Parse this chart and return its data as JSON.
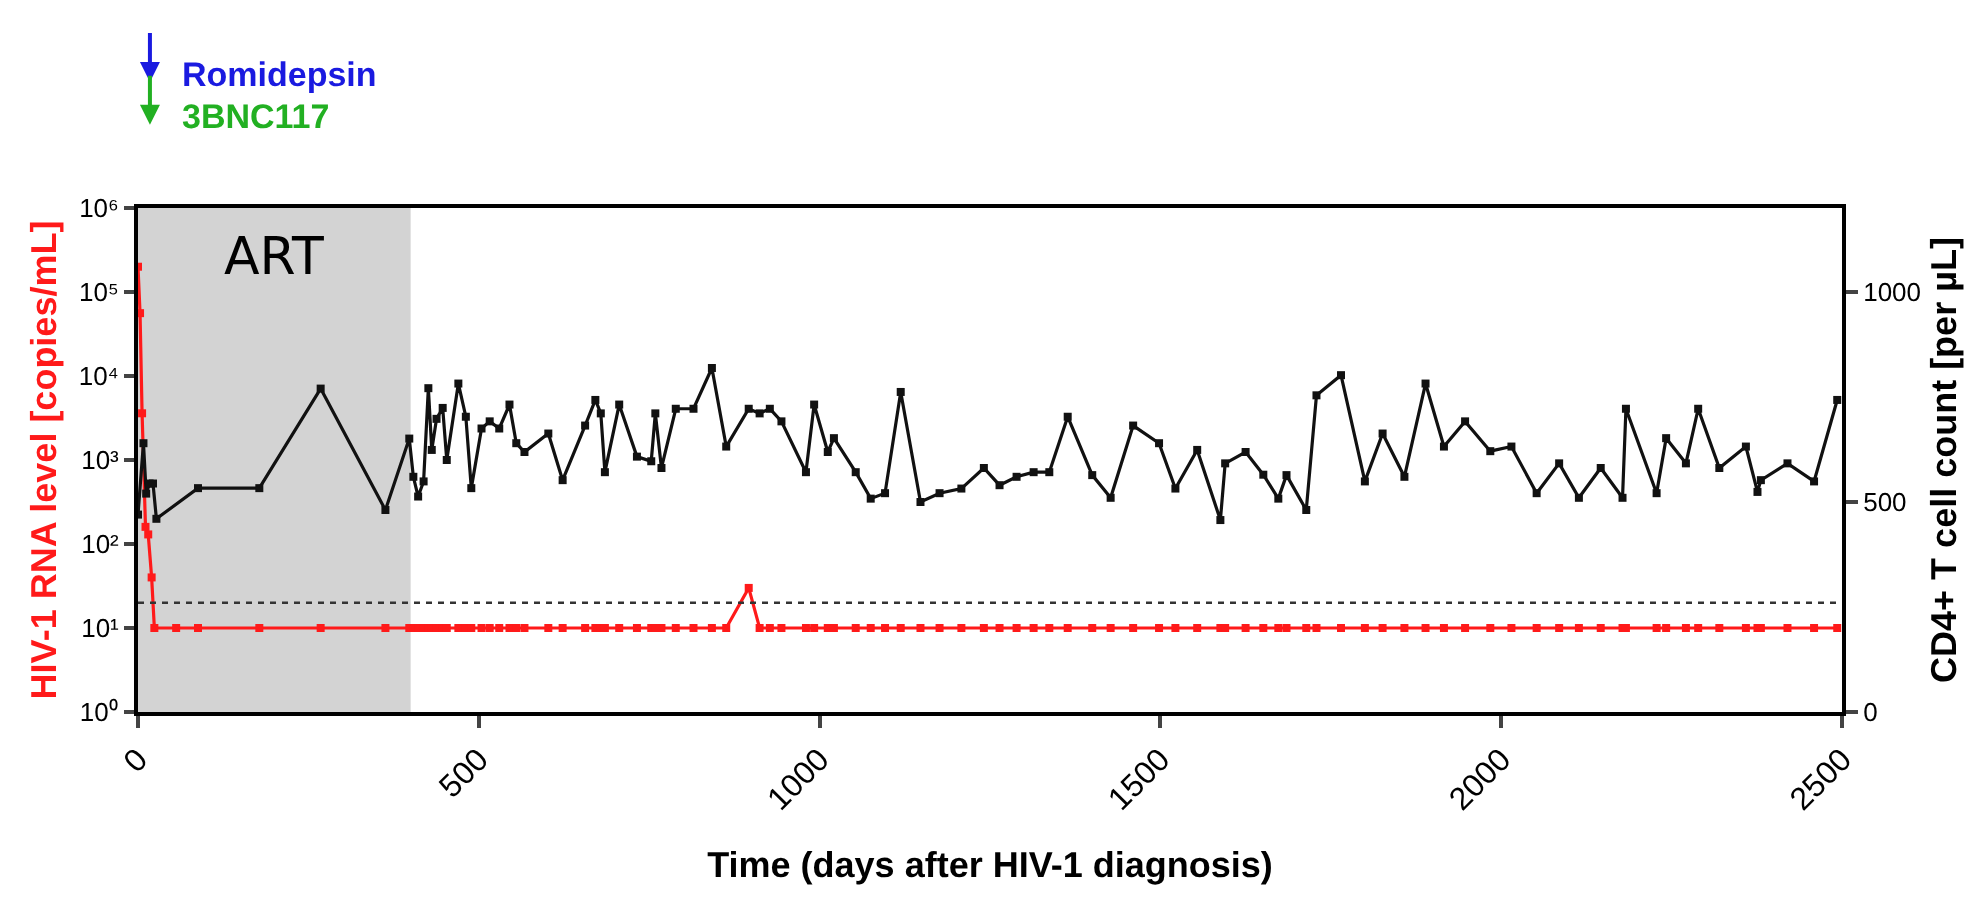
{
  "chart_data": {
    "type": "line",
    "xlabel": "Time (days after HIV-1 diagnosis)",
    "ylabel": "HIV-1 RNA level [copies/mL]",
    "y2label": "CD4+ T cell count [per µL]",
    "xlim": [
      0,
      2500
    ],
    "xticks": [
      0,
      500,
      1000,
      1500,
      2000,
      2500
    ],
    "ylim": [
      1,
      1000000
    ],
    "yticks": [
      {
        "value": 1,
        "label": "10⁰"
      },
      {
        "value": 10,
        "label": "10¹"
      },
      {
        "value": 100,
        "label": "10²"
      },
      {
        "value": 1000,
        "label": "10³"
      },
      {
        "value": 10000,
        "label": "10⁴"
      },
      {
        "value": 100000,
        "label": "10⁵"
      },
      {
        "value": 1000000,
        "label": "10⁶"
      }
    ],
    "y2lim": [
      0,
      1200
    ],
    "y2ticks": [
      0,
      500,
      1000
    ],
    "log": "y",
    "grid": false,
    "marker": "square",
    "line_style": "solid",
    "series": [
      {
        "color": "#ff1a1a",
        "axis": "y",
        "x": [
          0,
          3,
          6,
          11,
          15,
          20,
          24,
          56,
          88,
          178,
          268,
          363,
          398,
          404,
          411,
          419,
          426,
          431,
          438,
          447,
          453,
          470,
          481,
          489,
          504,
          516,
          530,
          545,
          555,
          567,
          602,
          623,
          656,
          671,
          679,
          685,
          706,
          732,
          753,
          759,
          768,
          789,
          815,
          842,
          863,
          896,
          912,
          927,
          944,
          980,
          992,
          1012,
          1021,
          1053,
          1075,
          1096,
          1119,
          1148,
          1176,
          1208,
          1241,
          1264,
          1289,
          1314,
          1337,
          1364,
          1400,
          1427,
          1460,
          1498,
          1522,
          1554,
          1588,
          1595,
          1625,
          1651,
          1673,
          1685,
          1714,
          1729,
          1765,
          1800,
          1826,
          1858,
          1889,
          1916,
          1947,
          1984,
          2015,
          2052,
          2085,
          2114,
          2146,
          2178,
          2183,
          2228,
          2242,
          2271,
          2289,
          2320,
          2359,
          2376,
          2381,
          2420,
          2459,
          2493
        ],
        "values": [
          200000,
          56000,
          3600,
          160,
          130,
          40,
          10,
          10,
          10,
          10,
          10,
          10,
          10,
          10,
          10,
          10,
          10,
          10,
          10,
          10,
          10,
          10,
          10,
          10,
          10,
          10,
          10,
          10,
          10,
          10,
          10,
          10,
          10,
          10,
          10,
          10,
          10,
          10,
          10,
          10,
          10,
          10,
          10,
          10,
          10,
          30,
          10,
          10,
          10,
          10,
          10,
          10,
          10,
          10,
          10,
          10,
          10,
          10,
          10,
          10,
          10,
          10,
          10,
          10,
          10,
          10,
          10,
          10,
          10,
          10,
          10,
          10,
          10,
          10,
          10,
          10,
          10,
          10,
          10,
          10,
          10,
          10,
          10,
          10,
          10,
          10,
          10,
          10,
          10,
          10,
          10,
          10,
          10,
          10,
          10,
          10,
          10,
          10,
          10,
          10,
          10,
          10,
          10,
          10,
          10,
          10
        ]
      },
      {
        "color": "#111111",
        "axis": "y2",
        "x": [
          0,
          8,
          12,
          17,
          22,
          27,
          88,
          178,
          268,
          363,
          398,
          404,
          411,
          419,
          426,
          431,
          438,
          447,
          453,
          470,
          481,
          489,
          504,
          516,
          530,
          545,
          555,
          567,
          602,
          623,
          656,
          671,
          679,
          685,
          706,
          732,
          753,
          759,
          768,
          789,
          815,
          842,
          863,
          896,
          912,
          927,
          944,
          980,
          992,
          1012,
          1021,
          1053,
          1075,
          1096,
          1119,
          1148,
          1176,
          1208,
          1241,
          1264,
          1289,
          1314,
          1337,
          1364,
          1400,
          1427,
          1460,
          1498,
          1522,
          1554,
          1588,
          1595,
          1625,
          1651,
          1673,
          1685,
          1714,
          1729,
          1765,
          1800,
          1826,
          1858,
          1889,
          1916,
          1947,
          1984,
          2015,
          2052,
          2085,
          2114,
          2146,
          2178,
          2183,
          2228,
          2242,
          2271,
          2289,
          2320,
          2359,
          2376,
          2381,
          2420,
          2459,
          2493
        ],
        "values": [
          470,
          640,
          520,
          544,
          544,
          460,
          533,
          533,
          770,
          481,
          651,
          560,
          513,
          549,
          771,
          624,
          698,
          724,
          600,
          782,
          703,
          533,
          675,
          692,
          675,
          732,
          640,
          619,
          663,
          552,
          682,
          743,
          711,
          571,
          732,
          608,
          597,
          711,
          581,
          722,
          722,
          819,
          632,
          722,
          711,
          722,
          692,
          571,
          732,
          619,
          652,
          571,
          508,
          521,
          762,
          500,
          521,
          532,
          581,
          540,
          560,
          571,
          571,
          703,
          564,
          510,
          682,
          640,
          532,
          624,
          457,
          592,
          619,
          565,
          508,
          564,
          481,
          754,
          802,
          549,
          663,
          560,
          782,
          632,
          692,
          621,
          632,
          521,
          592,
          510,
          581,
          510,
          722,
          521,
          652,
          592,
          722,
          581,
          632,
          524,
          552,
          592,
          549,
          743
        ]
      }
    ],
    "ref_lines": [
      {
        "axis": "y",
        "value": 20,
        "line_style": "dotted",
        "color": "#333333"
      }
    ],
    "bands": [
      {
        "axis": "x",
        "from": 0,
        "to": 400,
        "label": "ART",
        "color": "#d3d3d3"
      }
    ],
    "annotations": [
      "Romidepsin",
      "3BNC117"
    ]
  }
}
